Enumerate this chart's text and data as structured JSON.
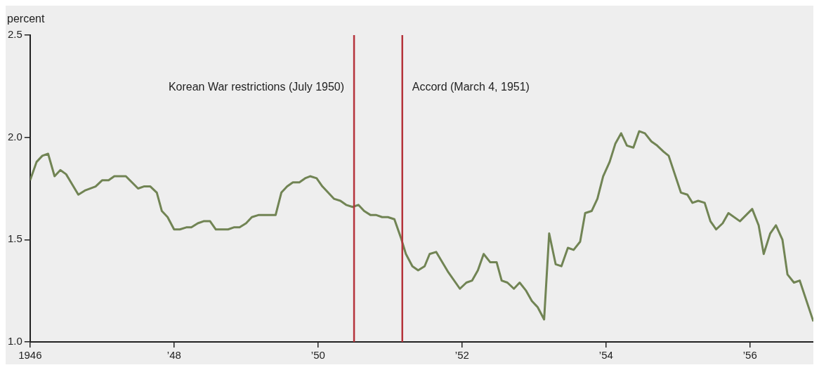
{
  "chart_data": {
    "type": "line",
    "ylabel": "percent",
    "x": [
      1946.0,
      1946.09,
      1946.17,
      1946.25,
      1946.34,
      1946.42,
      1946.5,
      1946.67,
      1946.76,
      1946.91,
      1947.0,
      1947.09,
      1947.17,
      1947.33,
      1947.5,
      1947.58,
      1947.67,
      1947.76,
      1947.83,
      1947.91,
      1948.0,
      1948.08,
      1948.17,
      1948.24,
      1948.33,
      1948.41,
      1948.5,
      1948.58,
      1948.75,
      1948.83,
      1948.91,
      1949.0,
      1949.08,
      1949.17,
      1949.41,
      1949.49,
      1949.57,
      1949.65,
      1949.74,
      1949.82,
      1949.89,
      1949.98,
      1950.06,
      1950.22,
      1950.31,
      1950.39,
      1950.48,
      1950.56,
      1950.64,
      1950.73,
      1950.81,
      1950.89,
      1950.97,
      1951.06,
      1951.15,
      1951.22,
      1951.31,
      1951.39,
      1951.48,
      1951.55,
      1951.64,
      1951.81,
      1951.97,
      1952.06,
      1952.14,
      1952.22,
      1952.3,
      1952.39,
      1952.48,
      1952.55,
      1952.63,
      1952.72,
      1952.8,
      1952.89,
      1952.97,
      1953.05,
      1953.14,
      1953.21,
      1953.3,
      1953.38,
      1953.47,
      1953.55,
      1953.64,
      1953.71,
      1953.8,
      1953.88,
      1953.96,
      1954.05,
      1954.13,
      1954.21,
      1954.29,
      1954.38,
      1954.46,
      1954.54,
      1954.63,
      1954.71,
      1954.8,
      1954.87,
      1955.04,
      1955.13,
      1955.2,
      1955.28,
      1955.37,
      1955.45,
      1955.53,
      1955.62,
      1955.7,
      1955.86,
      1956.03,
      1956.12,
      1956.19,
      1956.28,
      1956.36,
      1956.45,
      1956.52,
      1956.61,
      1956.69,
      1956.88
    ],
    "series": [
      {
        "color": "#718454",
        "values": [
          1.79,
          1.88,
          1.91,
          1.92,
          1.81,
          1.84,
          1.82,
          1.72,
          1.74,
          1.76,
          1.79,
          1.79,
          1.81,
          1.81,
          1.75,
          1.76,
          1.76,
          1.73,
          1.64,
          1.61,
          1.55,
          1.55,
          1.56,
          1.56,
          1.58,
          1.59,
          1.59,
          1.55,
          1.55,
          1.56,
          1.56,
          1.58,
          1.61,
          1.62,
          1.62,
          1.73,
          1.76,
          1.78,
          1.78,
          1.8,
          1.81,
          1.8,
          1.76,
          1.7,
          1.69,
          1.67,
          1.66,
          1.67,
          1.64,
          1.62,
          1.62,
          1.61,
          1.61,
          1.6,
          1.51,
          1.43,
          1.37,
          1.35,
          1.37,
          1.43,
          1.44,
          1.34,
          1.26,
          1.29,
          1.3,
          1.35,
          1.43,
          1.39,
          1.39,
          1.3,
          1.29,
          1.26,
          1.29,
          1.25,
          1.2,
          1.17,
          1.11,
          1.53,
          1.38,
          1.37,
          1.46,
          1.45,
          1.49,
          1.63,
          1.64,
          1.7,
          1.81,
          1.88,
          1.97,
          2.02,
          1.96,
          1.95,
          2.03,
          2.02,
          1.98,
          1.96,
          1.93,
          1.91,
          1.73,
          1.72,
          1.68,
          1.69,
          1.68,
          1.59,
          1.55,
          1.58,
          1.63,
          1.59,
          1.65,
          1.57,
          1.43,
          1.53,
          1.57,
          1.5,
          1.33,
          1.29,
          1.3,
          1.1
        ]
      }
    ],
    "xlim": [
      1946,
      1956.88
    ],
    "xticks": [
      1946,
      {
        "value": 1948,
        "label": "’48"
      },
      {
        "value": 1950,
        "label": "’50"
      },
      {
        "value": 1952,
        "label": "’52"
      },
      {
        "value": 1954,
        "label": "’54"
      },
      {
        "value": 1956,
        "label": "’56"
      }
    ],
    "ylim": [
      1.0,
      2.5
    ],
    "yticks": [
      {
        "value": 1.0,
        "label": "1.0"
      },
      {
        "value": 1.5,
        "label": "1.5"
      },
      {
        "value": 2.0,
        "label": "2.0"
      },
      {
        "value": 2.5,
        "label": "2.5"
      }
    ],
    "ref_lines": [
      {
        "axis": "x",
        "value": 1950.5,
        "label": "Korean War restrictions (July 1950)",
        "color": "#b5333b"
      },
      {
        "axis": "x",
        "value": 1951.17,
        "label": "Accord (March 4, 1951)",
        "color": "#b5333b"
      }
    ],
    "grid": false,
    "legend": false,
    "marker": "none",
    "line_style": "solid"
  }
}
